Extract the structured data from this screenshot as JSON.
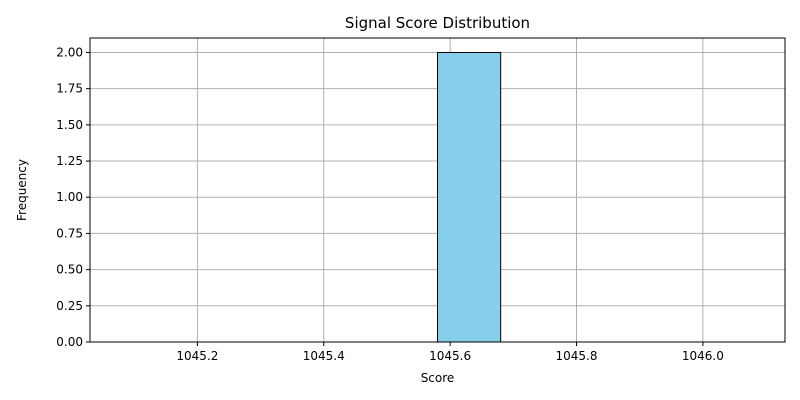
{
  "chart_data": {
    "type": "bar",
    "title": "Signal Score Distribution",
    "xlabel": "Score",
    "ylabel": "Frequency",
    "xlim": [
      1045.03,
      1046.13
    ],
    "ylim": [
      0,
      2.1
    ],
    "xticks": [
      1045.2,
      1045.4,
      1045.6,
      1045.8,
      1046.0
    ],
    "xtick_labels": [
      "1045.2",
      "1045.4",
      "1045.6",
      "1045.8",
      "1046.0"
    ],
    "yticks": [
      0,
      0.25,
      0.5,
      0.75,
      1.0,
      1.25,
      1.5,
      1.75,
      2.0
    ],
    "ytick_labels": [
      "0.00",
      "0.25",
      "0.50",
      "0.75",
      "1.00",
      "1.25",
      "1.50",
      "1.75",
      "2.00"
    ],
    "bin_edges": [
      1045.08,
      1045.18,
      1045.28,
      1045.38,
      1045.48,
      1045.58,
      1045.68,
      1045.78,
      1045.88,
      1045.98,
      1046.08
    ],
    "values": [
      0,
      0,
      0,
      0,
      0,
      2,
      0,
      0,
      0,
      0
    ],
    "grid": true,
    "colors": {
      "bar_fill": "#87ceeb",
      "bar_edge": "#000000",
      "grid": "#b0b0b0",
      "axis": "#000000"
    }
  }
}
